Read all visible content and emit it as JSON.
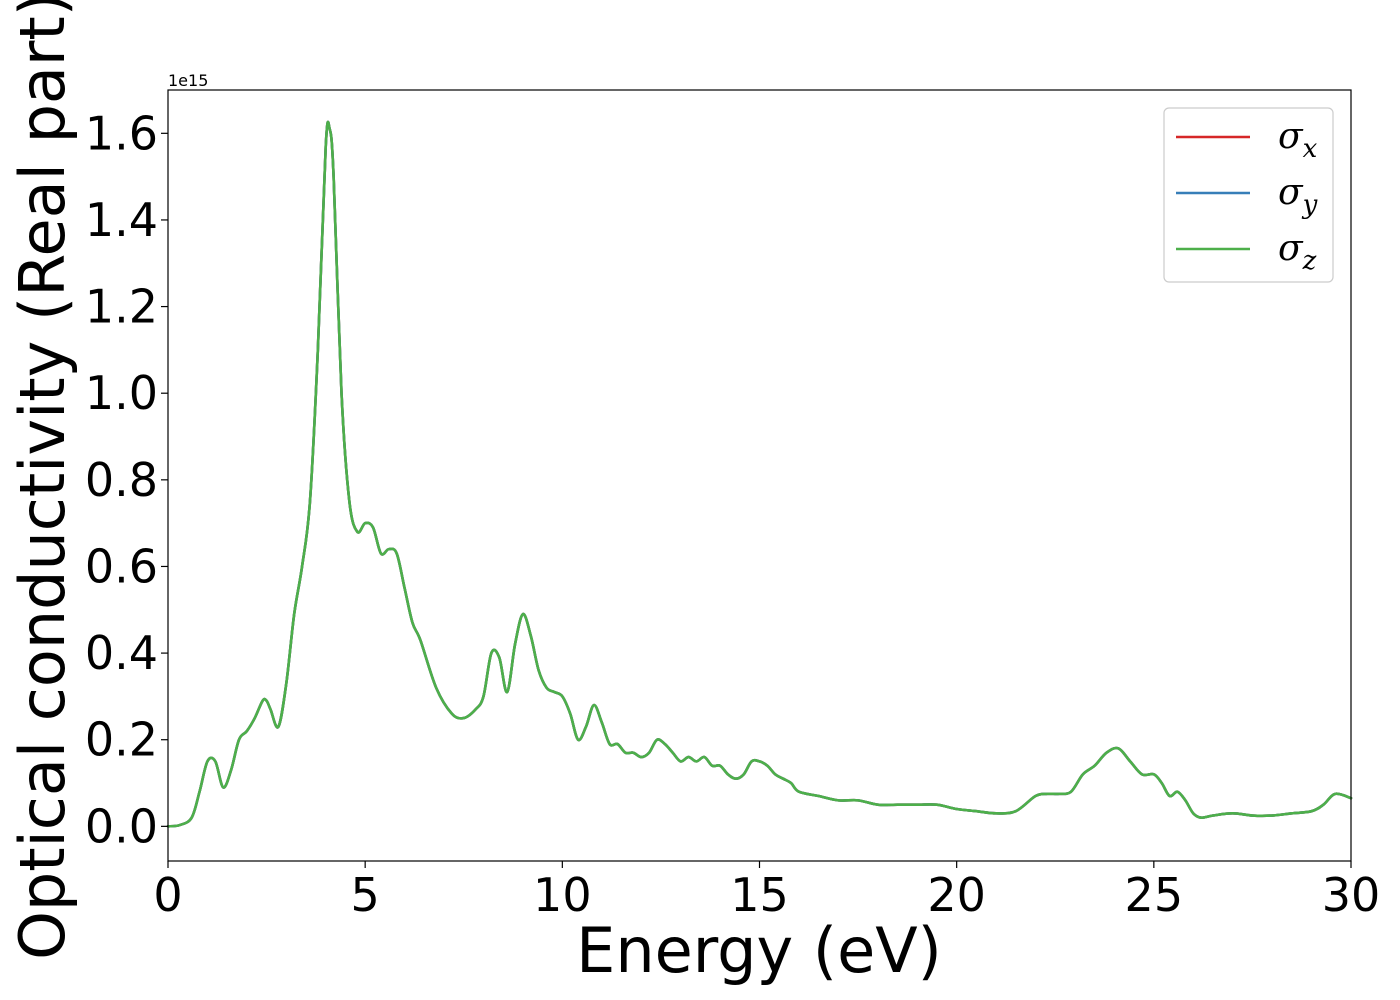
{
  "chart_data": {
    "type": "line",
    "xlabel": "Energy (eV)",
    "ylabel": "Optical conductivity (Real part)",
    "y_offset_text": "1e15",
    "xlim": [
      0,
      30
    ],
    "ylim": [
      -0.08,
      1.7
    ],
    "y_scale_factor": 1000000000000000.0,
    "xticks": [
      0,
      5,
      10,
      15,
      20,
      25,
      30
    ],
    "xtick_labels": [
      "0",
      "5",
      "10",
      "15",
      "20",
      "25",
      "30"
    ],
    "yticks": [
      0.0,
      0.2,
      0.4,
      0.6,
      0.8,
      1.0,
      1.2,
      1.4,
      1.6
    ],
    "ytick_labels": [
      "0.0",
      "0.2",
      "0.4",
      "0.6",
      "0.8",
      "1.0",
      "1.2",
      "1.4",
      "1.6"
    ],
    "grid": false,
    "legend_position": "top-right",
    "x": [
      0,
      0.3,
      0.6,
      0.8,
      1.0,
      1.2,
      1.4,
      1.6,
      1.8,
      2.0,
      2.2,
      2.4,
      2.5,
      2.6,
      2.8,
      3.0,
      3.2,
      3.4,
      3.6,
      3.8,
      4.0,
      4.1,
      4.2,
      4.4,
      4.6,
      4.8,
      5.0,
      5.2,
      5.4,
      5.6,
      5.8,
      6.0,
      6.2,
      6.4,
      6.8,
      7.2,
      7.5,
      7.8,
      8.0,
      8.2,
      8.4,
      8.6,
      8.8,
      9.0,
      9.2,
      9.4,
      9.6,
      9.8,
      10.0,
      10.2,
      10.4,
      10.6,
      10.8,
      11.0,
      11.2,
      11.4,
      11.6,
      11.8,
      12.0,
      12.2,
      12.4,
      12.6,
      12.8,
      13.0,
      13.2,
      13.4,
      13.6,
      13.8,
      14.0,
      14.2,
      14.4,
      14.6,
      14.8,
      15.0,
      15.2,
      15.4,
      15.6,
      15.8,
      16.0,
      16.5,
      17.0,
      17.5,
      18.0,
      18.5,
      19.0,
      19.5,
      20.0,
      20.5,
      21.0,
      21.5,
      22.0,
      22.3,
      22.6,
      22.9,
      23.2,
      23.5,
      23.8,
      24.1,
      24.4,
      24.7,
      25.0,
      25.2,
      25.4,
      25.6,
      25.8,
      26.0,
      26.2,
      26.5,
      27.0,
      27.5,
      28.0,
      28.5,
      29.0,
      29.3,
      29.6,
      30.0
    ],
    "series": [
      {
        "name": "σx",
        "sub": "x",
        "color": "#d62728",
        "values": [
          0.0,
          0.003,
          0.02,
          0.08,
          0.15,
          0.15,
          0.09,
          0.13,
          0.2,
          0.22,
          0.25,
          0.29,
          0.29,
          0.27,
          0.23,
          0.33,
          0.49,
          0.6,
          0.75,
          1.1,
          1.57,
          1.61,
          1.5,
          1.0,
          0.75,
          0.68,
          0.7,
          0.69,
          0.63,
          0.64,
          0.63,
          0.55,
          0.47,
          0.43,
          0.32,
          0.26,
          0.25,
          0.27,
          0.3,
          0.4,
          0.39,
          0.31,
          0.42,
          0.49,
          0.44,
          0.36,
          0.32,
          0.31,
          0.3,
          0.26,
          0.2,
          0.23,
          0.28,
          0.24,
          0.19,
          0.19,
          0.17,
          0.17,
          0.16,
          0.17,
          0.2,
          0.19,
          0.17,
          0.15,
          0.16,
          0.15,
          0.16,
          0.14,
          0.14,
          0.12,
          0.11,
          0.12,
          0.15,
          0.15,
          0.14,
          0.12,
          0.11,
          0.1,
          0.08,
          0.07,
          0.06,
          0.06,
          0.05,
          0.05,
          0.05,
          0.05,
          0.04,
          0.035,
          0.03,
          0.035,
          0.07,
          0.075,
          0.075,
          0.08,
          0.12,
          0.14,
          0.17,
          0.18,
          0.15,
          0.12,
          0.12,
          0.1,
          0.07,
          0.08,
          0.06,
          0.03,
          0.02,
          0.025,
          0.03,
          0.025,
          0.025,
          0.03,
          0.035,
          0.05,
          0.075,
          0.065
        ]
      },
      {
        "name": "σy",
        "sub": "y",
        "color": "#377eb8",
        "values": [
          0.0,
          0.003,
          0.02,
          0.08,
          0.15,
          0.15,
          0.09,
          0.13,
          0.2,
          0.22,
          0.25,
          0.29,
          0.29,
          0.27,
          0.23,
          0.33,
          0.49,
          0.6,
          0.75,
          1.1,
          1.57,
          1.61,
          1.5,
          1.0,
          0.75,
          0.68,
          0.7,
          0.69,
          0.63,
          0.64,
          0.63,
          0.55,
          0.47,
          0.43,
          0.32,
          0.26,
          0.25,
          0.27,
          0.3,
          0.4,
          0.39,
          0.31,
          0.42,
          0.49,
          0.44,
          0.36,
          0.32,
          0.31,
          0.3,
          0.26,
          0.2,
          0.23,
          0.28,
          0.24,
          0.19,
          0.19,
          0.17,
          0.17,
          0.16,
          0.17,
          0.2,
          0.19,
          0.17,
          0.15,
          0.16,
          0.15,
          0.16,
          0.14,
          0.14,
          0.12,
          0.11,
          0.12,
          0.15,
          0.15,
          0.14,
          0.12,
          0.11,
          0.1,
          0.08,
          0.07,
          0.06,
          0.06,
          0.05,
          0.05,
          0.05,
          0.05,
          0.04,
          0.035,
          0.03,
          0.035,
          0.07,
          0.075,
          0.075,
          0.08,
          0.12,
          0.14,
          0.17,
          0.18,
          0.15,
          0.12,
          0.12,
          0.1,
          0.07,
          0.08,
          0.06,
          0.03,
          0.02,
          0.025,
          0.03,
          0.025,
          0.025,
          0.03,
          0.035,
          0.05,
          0.075,
          0.065
        ]
      },
      {
        "name": "σz",
        "sub": "z",
        "color": "#4daf4a",
        "values": [
          0.0,
          0.003,
          0.02,
          0.08,
          0.15,
          0.15,
          0.09,
          0.13,
          0.2,
          0.22,
          0.25,
          0.29,
          0.29,
          0.27,
          0.23,
          0.33,
          0.49,
          0.6,
          0.75,
          1.1,
          1.57,
          1.61,
          1.5,
          1.0,
          0.75,
          0.68,
          0.7,
          0.69,
          0.63,
          0.64,
          0.63,
          0.55,
          0.47,
          0.43,
          0.32,
          0.26,
          0.25,
          0.27,
          0.3,
          0.4,
          0.39,
          0.31,
          0.42,
          0.49,
          0.44,
          0.36,
          0.32,
          0.31,
          0.3,
          0.26,
          0.2,
          0.23,
          0.28,
          0.24,
          0.19,
          0.19,
          0.17,
          0.17,
          0.16,
          0.17,
          0.2,
          0.19,
          0.17,
          0.15,
          0.16,
          0.15,
          0.16,
          0.14,
          0.14,
          0.12,
          0.11,
          0.12,
          0.15,
          0.15,
          0.14,
          0.12,
          0.11,
          0.1,
          0.08,
          0.07,
          0.06,
          0.06,
          0.05,
          0.05,
          0.05,
          0.05,
          0.04,
          0.035,
          0.03,
          0.035,
          0.07,
          0.075,
          0.075,
          0.08,
          0.12,
          0.14,
          0.17,
          0.18,
          0.15,
          0.12,
          0.12,
          0.1,
          0.07,
          0.08,
          0.06,
          0.03,
          0.02,
          0.025,
          0.03,
          0.025,
          0.025,
          0.03,
          0.035,
          0.05,
          0.075,
          0.065
        ]
      }
    ]
  }
}
